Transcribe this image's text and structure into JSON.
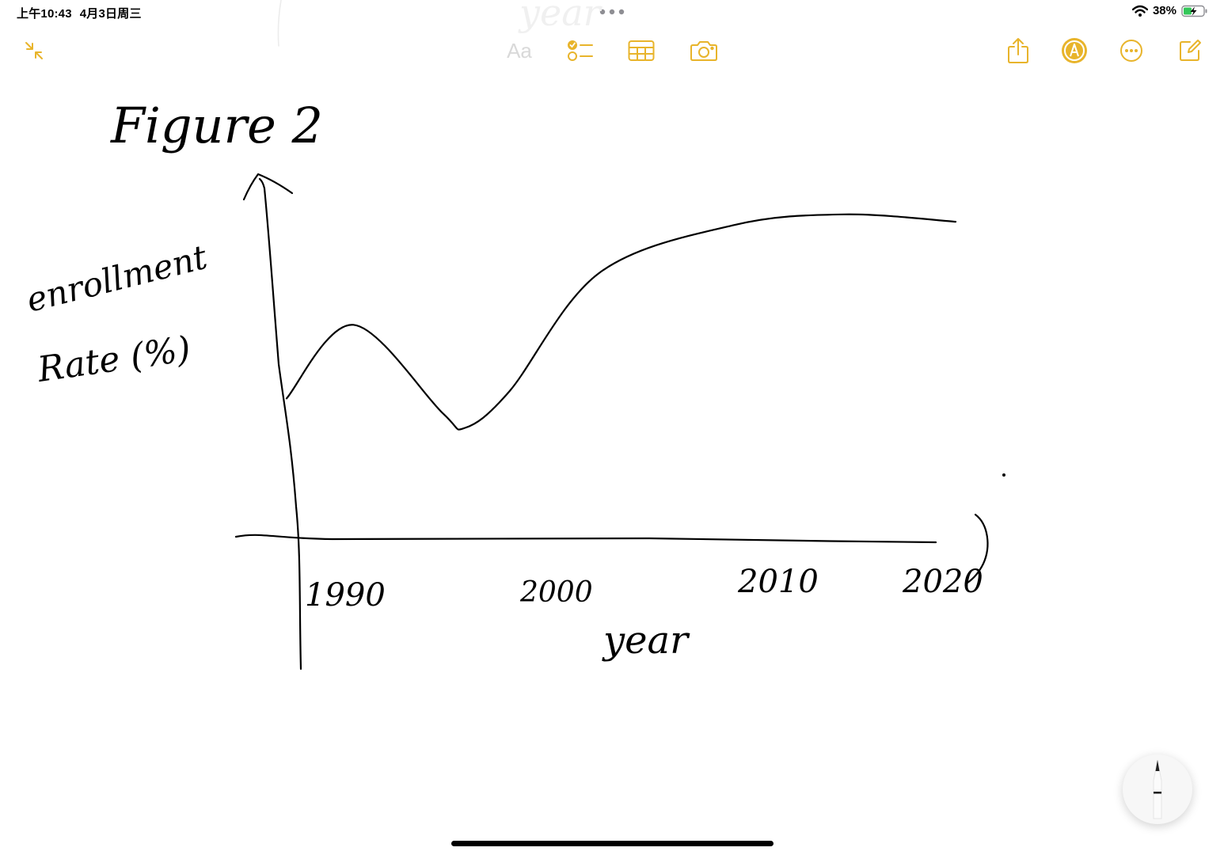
{
  "status_bar": {
    "time": "上午10:43",
    "date": "4月3日周三",
    "battery": "38%",
    "wifi_icon": "wifi-icon",
    "battery_icon": "battery-charging-icon"
  },
  "toolbar": {
    "collapse_icon": "collapse-arrows-icon",
    "format_label": "Aa",
    "checklist_icon": "checklist-icon",
    "table_icon": "table-icon",
    "camera_icon": "camera-icon",
    "share_icon": "share-icon",
    "markup_icon": "markup-pen-circle-icon",
    "more_icon": "more-ellipsis-icon",
    "compose_icon": "compose-note-icon"
  },
  "drawing": {
    "title": "Figure 2",
    "y_axis_label": [
      "enrollment",
      "Rate (%)"
    ],
    "x_tick_labels": [
      "1990",
      "2000",
      "2010",
      "2020"
    ],
    "x_axis_label": "year"
  },
  "chart_data": {
    "type": "line",
    "title": "Figure 2",
    "xlabel": "year",
    "ylabel": "enrollment Rate (%)",
    "x": [
      1990,
      1993,
      1997,
      1998,
      2000,
      2004,
      2010,
      2015,
      2020
    ],
    "series": [
      {
        "values": [
          38,
          58,
          34,
          30,
          40,
          72,
          85,
          88,
          86
        ]
      }
    ],
    "x_ticks": [
      1990,
      2000,
      2010,
      2020
    ],
    "grid": false
  },
  "pencil_tool": {
    "icon": "pencil-icon"
  },
  "colors": {
    "accent": "#e8b42b",
    "ink": "#000000"
  }
}
